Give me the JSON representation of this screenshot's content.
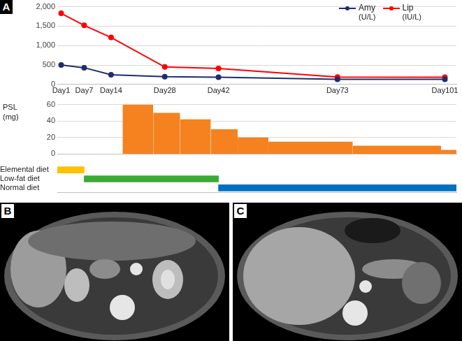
{
  "panel_labels": [
    "A",
    "B",
    "C"
  ],
  "chart_data": [
    {
      "type": "line",
      "x": [
        1,
        7,
        14,
        28,
        42,
        73,
        101
      ],
      "xlim": [
        0,
        104
      ],
      "xticks": [
        {
          "value": 1,
          "label": "Day1"
        },
        {
          "value": 7,
          "label": "Day7"
        },
        {
          "value": 14,
          "label": "Day14"
        },
        {
          "value": 28,
          "label": "Day28"
        },
        {
          "value": 42,
          "label": "Day42"
        },
        {
          "value": 73,
          "label": "Day73"
        },
        {
          "value": 101,
          "label": "Day101"
        }
      ],
      "ylim": [
        0,
        2000
      ],
      "yticks": [
        0,
        500,
        {
          "value": 1000,
          "label": "1,000"
        },
        {
          "value": 1500,
          "label": "1,500"
        },
        {
          "value": 2000,
          "label": "2,000"
        }
      ],
      "grid": true,
      "legend": "top-right",
      "series": [
        {
          "name": "Amy",
          "unit": "(U/L)",
          "color": "#1f2d6b",
          "marker": "circle",
          "values": [
            500,
            430,
            250,
            200,
            185,
            130,
            130
          ]
        },
        {
          "name": "Lip",
          "unit": "(IU/L)",
          "color": "#ff0000",
          "marker": "circle",
          "values": [
            1830,
            1520,
            1210,
            450,
            410,
            190,
            185
          ]
        }
      ]
    },
    {
      "type": "bar",
      "ylabel": [
        "PSL",
        "(mg)"
      ],
      "bins": [
        17,
        25,
        32,
        40,
        47,
        55,
        77,
        100,
        104
      ],
      "values": [
        60,
        50,
        42,
        30,
        20,
        15,
        10,
        5
      ],
      "color": "#f5821f",
      "xlim": [
        0,
        104
      ],
      "ylim": [
        0,
        60
      ],
      "yticks": [
        0,
        20,
        40,
        60
      ],
      "grid": true,
      "tick_labels": "y"
    },
    {
      "type": "bar",
      "orientation": "horizontal",
      "categories": [
        "Elemental diet",
        "Low-fat diet",
        "Normal diet"
      ],
      "values": [
        [
          0,
          7
        ],
        [
          7,
          42
        ],
        [
          42,
          104
        ]
      ],
      "colors": [
        "#ffc000",
        "#3aaa35",
        "#0070c0"
      ],
      "xlim": [
        0,
        104
      ],
      "tick_labels": "y"
    }
  ]
}
